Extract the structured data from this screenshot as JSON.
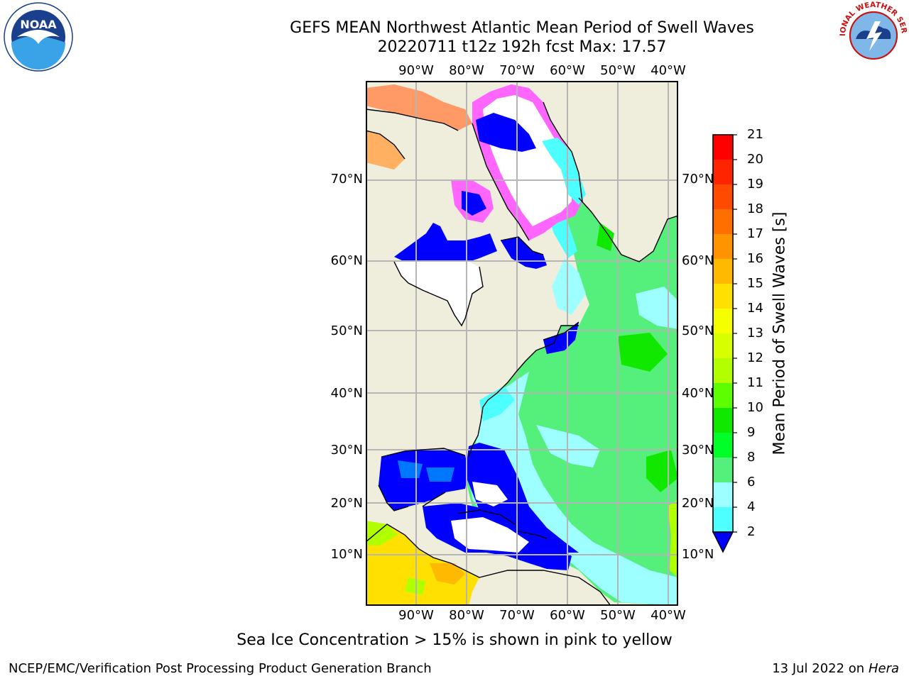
{
  "title": {
    "line1": "GEFS MEAN Northwest Atlantic Mean Period of Swell Waves",
    "line2": "20220711 t12z 192h fcst   Max: 17.57"
  },
  "map": {
    "lon_labels": [
      "90°W",
      "80°W",
      "70°W",
      "60°W",
      "50°W",
      "40°W"
    ],
    "lat_labels": [
      "70°N",
      "60°N",
      "50°N",
      "40°N",
      "30°N",
      "20°N",
      "10°N"
    ]
  },
  "colorbar": {
    "label": "Mean Period of Swell Waves [s]",
    "ticks": [
      "21",
      "20",
      "19",
      "18",
      "17",
      "16",
      "15",
      "14",
      "13",
      "12",
      "11",
      "10",
      "9",
      "8",
      "6",
      "4",
      "2"
    ],
    "colors": [
      "#ff0000",
      "#ff2400",
      "#ff4a00",
      "#ff6f00",
      "#ff9400",
      "#ffb900",
      "#ffe000",
      "#f5ff00",
      "#d8ff00",
      "#b2ff00",
      "#5dff00",
      "#10e800",
      "#00ff28",
      "#55f07c",
      "#9dffff",
      "#4dffff",
      "#00f0ff",
      "#0077ff"
    ],
    "underflow_color": "#0000ff"
  },
  "note": "Sea Ice Concentration > 15% is shown in pink to yellow",
  "footer": {
    "left": "NCEP/EMC/Verification Post Processing Product Generation Branch",
    "date": "13 Jul 2022 on",
    "host": "Hera"
  },
  "logos": {
    "left": "NOAA",
    "right": "NATIONAL WEATHER SERVICE"
  }
}
